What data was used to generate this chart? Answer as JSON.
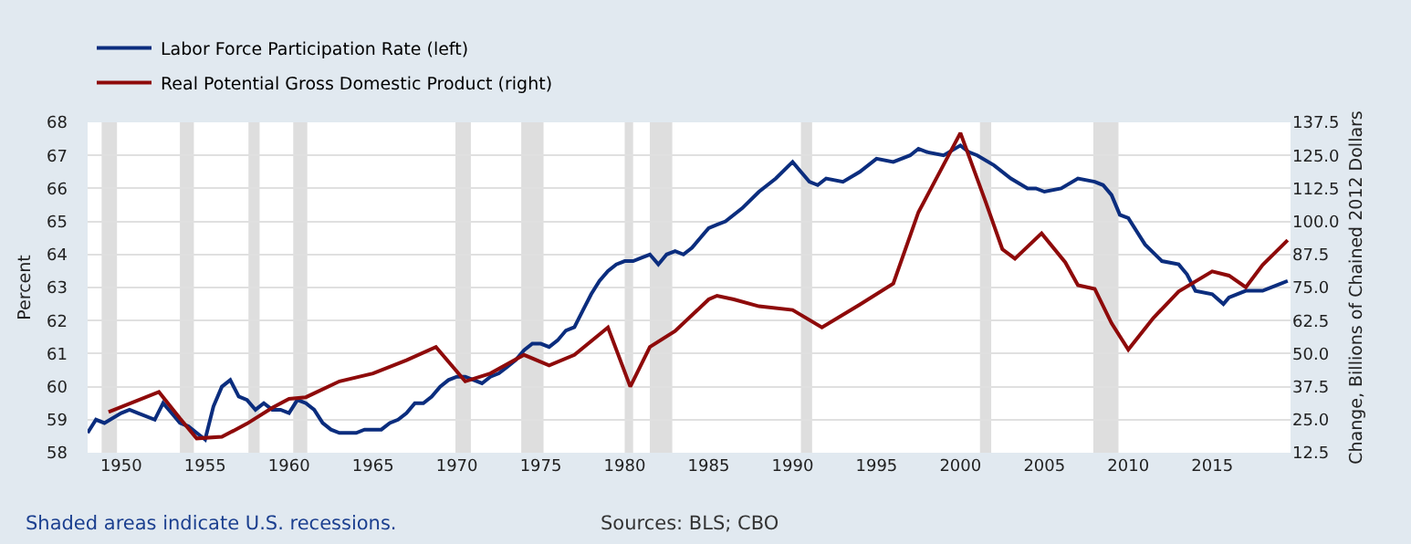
{
  "chart_data": {
    "type": "line",
    "xlim": [
      "1948-01",
      "2019-09"
    ],
    "xticks": [
      "1950",
      "1955",
      "1960",
      "1965",
      "1970",
      "1975",
      "1980",
      "1985",
      "1990",
      "1995",
      "2000",
      "2005",
      "2010",
      "2015"
    ],
    "ylim": [
      58,
      68
    ],
    "yticks": [
      58,
      59,
      60,
      61,
      62,
      63,
      64,
      65,
      66,
      67,
      68
    ],
    "y2lim": [
      12.5,
      137.5
    ],
    "y2ticks": [
      12.5,
      {
        "value": 25,
        "label": "25.0"
      },
      37.5,
      {
        "value": 50,
        "label": "50.0"
      },
      62.5,
      {
        "value": 75,
        "label": "75.0"
      },
      87.5,
      {
        "value": 100,
        "label": "100.0"
      },
      112.5,
      {
        "value": 125,
        "label": "125.0"
      },
      137.5
    ],
    "ylabel": "Percent",
    "y2label": "Change, Billions of Chained 2012 Dollars",
    "grid": "y",
    "legend": "top left",
    "line_style": "solid",
    "series": [
      {
        "name": "Labor Force Participation Rate (left)",
        "color": "#0b2d7e",
        "axis": "y",
        "x": [
          "1948-01",
          "1948-07",
          "1949-01",
          "1950-01",
          "1950-07",
          "1951-01",
          "1952-01",
          "1952-07",
          "1953-01",
          "1953-07",
          "1954-01",
          "1954-07",
          "1955-01",
          "1955-07",
          "1956-01",
          "1956-07",
          "1957-01",
          "1957-07",
          "1958-01",
          "1958-07",
          "1959-01",
          "1959-07",
          "1960-01",
          "1960-07",
          "1961-01",
          "1961-07",
          "1962-01",
          "1962-07",
          "1963-01",
          "1963-07",
          "1964-01",
          "1964-07",
          "1965-01",
          "1965-07",
          "1966-01",
          "1966-07",
          "1967-01",
          "1967-07",
          "1968-01",
          "1968-07",
          "1969-01",
          "1969-07",
          "1970-01",
          "1970-07",
          "1971-01",
          "1971-07",
          "1972-01",
          "1972-07",
          "1973-01",
          "1973-07",
          "1974-01",
          "1974-07",
          "1975-01",
          "1975-07",
          "1976-01",
          "1976-07",
          "1977-01",
          "1977-07",
          "1978-01",
          "1978-07",
          "1979-01",
          "1979-07",
          "1980-01",
          "1980-07",
          "1981-01",
          "1981-07",
          "1982-01",
          "1982-07",
          "1983-01",
          "1983-07",
          "1984-01",
          "1984-07",
          "1985-01",
          "1985-07",
          "1986-01",
          "1987-01",
          "1988-01",
          "1989-01",
          "1990-01",
          "1990-07",
          "1991-01",
          "1991-07",
          "1992-01",
          "1993-01",
          "1994-01",
          "1995-01",
          "1996-01",
          "1997-01",
          "1997-07",
          "1998-01",
          "1999-01",
          "2000-01",
          "2000-07",
          "2001-01",
          "2002-01",
          "2003-01",
          "2004-01",
          "2004-07",
          "2005-01",
          "2006-01",
          "2007-01",
          "2008-01",
          "2008-07",
          "2009-01",
          "2009-07",
          "2010-01",
          "2011-01",
          "2012-01",
          "2013-01",
          "2013-07",
          "2014-01",
          "2015-01",
          "2015-09",
          "2016-01",
          "2017-01",
          "2018-01",
          "2019-01",
          "2019-07"
        ],
        "values": [
          58.6,
          59.0,
          58.9,
          59.2,
          59.3,
          59.2,
          59.0,
          59.5,
          59.2,
          58.9,
          58.8,
          58.6,
          58.4,
          59.4,
          60.0,
          60.2,
          59.7,
          59.6,
          59.3,
          59.5,
          59.3,
          59.3,
          59.2,
          59.6,
          59.5,
          59.3,
          58.9,
          58.7,
          58.6,
          58.6,
          58.6,
          58.7,
          58.7,
          58.7,
          58.9,
          59.0,
          59.2,
          59.5,
          59.5,
          59.7,
          60.0,
          60.2,
          60.3,
          60.3,
          60.2,
          60.1,
          60.3,
          60.4,
          60.6,
          60.8,
          61.1,
          61.3,
          61.3,
          61.2,
          61.4,
          61.7,
          61.8,
          62.3,
          62.8,
          63.2,
          63.5,
          63.7,
          63.8,
          63.8,
          63.9,
          64.0,
          63.7,
          64.0,
          64.1,
          64.0,
          64.2,
          64.5,
          64.8,
          64.9,
          65.0,
          65.4,
          65.9,
          66.3,
          66.8,
          66.5,
          66.2,
          66.1,
          66.3,
          66.2,
          66.5,
          66.9,
          66.8,
          67.0,
          67.2,
          67.1,
          67.0,
          67.3,
          67.1,
          67.0,
          66.7,
          66.3,
          66.0,
          66.0,
          65.9,
          66.0,
          66.3,
          66.2,
          66.1,
          65.8,
          65.2,
          65.1,
          64.3,
          63.8,
          63.7,
          63.4,
          62.9,
          62.8,
          62.5,
          62.7,
          62.9,
          62.9,
          63.1,
          63.2
        ]
      },
      {
        "name": "Real Potential Gross Domestic Product (right)",
        "color": "#8e0a0a",
        "axis": "y2",
        "x": [
          "1949-04",
          "1952-04",
          "1953-07",
          "1954-07",
          "1956-01",
          "1957-07",
          "1959-01",
          "1960-01",
          "1961-01",
          "1963-01",
          "1965-01",
          "1967-01",
          "1968-10",
          "1970-07",
          "1972-01",
          "1974-01",
          "1975-07",
          "1977-01",
          "1979-01",
          "1980-05",
          "1981-07",
          "1983-01",
          "1985-01",
          "1985-07",
          "1986-07",
          "1988-01",
          "1990-01",
          "1991-10",
          "1994-01",
          "1996-01",
          "1997-07",
          "1999-01",
          "2000-01",
          "2001-07",
          "2002-07",
          "2003-04",
          "2004-11",
          "2006-04",
          "2007-01",
          "2008-01",
          "2009-01",
          "2010-01",
          "2011-07",
          "2013-01",
          "2015-01",
          "2016-01",
          "2017-01",
          "2018-01",
          "2019-07"
        ],
        "values": [
          27.9,
          35.5,
          25.5,
          17.9,
          18.5,
          23.5,
          29.5,
          32.9,
          33.5,
          39.5,
          42.5,
          47.5,
          52.5,
          39.5,
          42.5,
          49.5,
          45.5,
          49.5,
          59.9,
          37.5,
          52.5,
          58.5,
          70.5,
          71.9,
          70.5,
          67.9,
          66.5,
          59.9,
          68.5,
          76.5,
          103.5,
          121.5,
          133.5,
          107.5,
          89.5,
          85.9,
          95.5,
          84.5,
          75.9,
          74.5,
          61.5,
          51.5,
          63.5,
          73.5,
          81.1,
          79.5,
          75.1,
          83.5,
          92.9
        ]
      }
    ],
    "bands": [
      {
        "axis": "x",
        "from": "1948-11",
        "to": "1949-10",
        "color": "#dedede"
      },
      {
        "axis": "x",
        "from": "1953-07",
        "to": "1954-05",
        "color": "#dedede"
      },
      {
        "axis": "x",
        "from": "1957-08",
        "to": "1958-04",
        "color": "#dedede"
      },
      {
        "axis": "x",
        "from": "1960-04",
        "to": "1961-02",
        "color": "#dedede"
      },
      {
        "axis": "x",
        "from": "1969-12",
        "to": "1970-11",
        "color": "#dedede"
      },
      {
        "axis": "x",
        "from": "1973-11",
        "to": "1975-03",
        "color": "#dedede"
      },
      {
        "axis": "x",
        "from": "1980-01",
        "to": "1980-07",
        "color": "#dedede"
      },
      {
        "axis": "x",
        "from": "1981-07",
        "to": "1982-11",
        "color": "#dedede"
      },
      {
        "axis": "x",
        "from": "1990-07",
        "to": "1991-03",
        "color": "#dedede"
      },
      {
        "axis": "x",
        "from": "2001-03",
        "to": "2001-11",
        "color": "#dedede"
      },
      {
        "axis": "x",
        "from": "2007-12",
        "to": "2009-06",
        "color": "#dedede"
      }
    ],
    "annotations": [
      "Shaded areas indicate U.S. recessions.",
      "Sources: BLS; CBO"
    ]
  }
}
